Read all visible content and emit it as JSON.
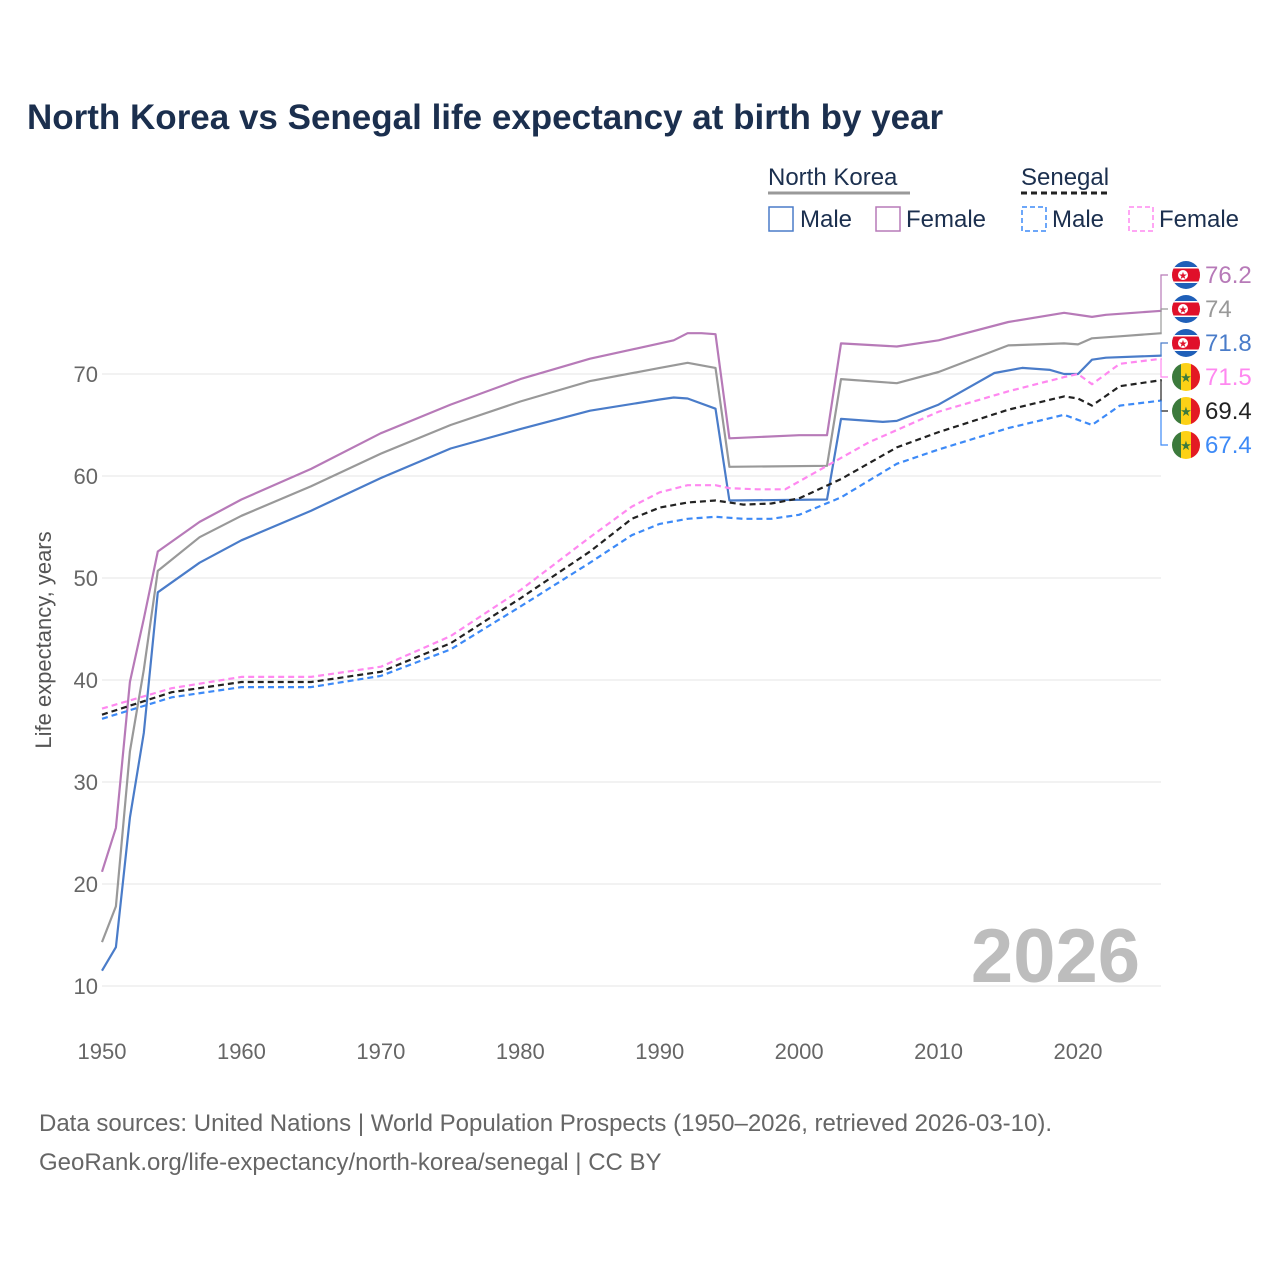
{
  "chart_data": {
    "type": "line",
    "title": "North Korea vs Senegal life expectancy at birth by year",
    "xlabel": "",
    "ylabel": "Life expectancy, years",
    "xlim": [
      1950,
      2026
    ],
    "ylim": [
      10,
      80
    ],
    "x_ticks": [
      1950,
      1960,
      1970,
      1980,
      1990,
      2000,
      2010,
      2020
    ],
    "y_ticks": [
      10,
      20,
      30,
      40,
      50,
      60,
      70
    ],
    "grid": true,
    "current_year": "2026",
    "legend": {
      "placement": "top-right",
      "groups": [
        {
          "country": "North Korea",
          "entries": [
            "Male",
            "Female"
          ]
        },
        {
          "country": "Senegal",
          "entries": [
            "Male",
            "Female"
          ]
        }
      ]
    },
    "series": [
      {
        "name": "North Korea Female",
        "color": "#b77ab8",
        "dashed": false,
        "flag": "north-korea",
        "end_label": "76.2",
        "x": [
          1950,
          1951,
          1952,
          1953,
          1954,
          1957,
          1960,
          1965,
          1970,
          1975,
          1980,
          1985,
          1990,
          1991,
          1992,
          1993,
          1994,
          1995,
          2000,
          2002,
          2003,
          2007,
          2010,
          2015,
          2019,
          2021,
          2022,
          2024,
          2026
        ],
        "y": [
          21.2,
          25.5,
          39.8,
          46,
          52.6,
          55.5,
          57.7,
          60.7,
          64.2,
          67,
          69.5,
          71.5,
          73,
          73.3,
          74,
          74,
          73.9,
          63.7,
          64,
          64,
          73,
          72.7,
          73.3,
          75.1,
          76,
          75.6,
          75.8,
          76,
          76.2
        ]
      },
      {
        "name": "North Korea Both",
        "color": "#999999",
        "dashed": false,
        "flag": "north-korea",
        "end_label": "74",
        "x": [
          1950,
          1951,
          1952,
          1953,
          1954,
          1957,
          1960,
          1965,
          1970,
          1975,
          1980,
          1985,
          1990,
          1992,
          1994,
          1995,
          2002,
          2003,
          2007,
          2010,
          2015,
          2019,
          2020,
          2021,
          2023,
          2026
        ],
        "y": [
          14.3,
          17.8,
          33,
          41,
          50.7,
          54,
          56.1,
          59,
          62.2,
          65,
          67.3,
          69.3,
          70.6,
          71.1,
          70.6,
          60.9,
          61,
          69.5,
          69.1,
          70.2,
          72.8,
          73,
          72.9,
          73.5,
          73.7,
          74
        ]
      },
      {
        "name": "North Korea Male",
        "color": "#4a7cc9",
        "dashed": false,
        "flag": "north-korea",
        "end_label": "71.8",
        "x": [
          1950,
          1951,
          1952,
          1953,
          1954,
          1957,
          1960,
          1965,
          1970,
          1975,
          1980,
          1985,
          1990,
          1991,
          1992,
          1994,
          1995,
          2002,
          2003,
          2006,
          2007,
          2010,
          2014,
          2016,
          2018,
          2019,
          2020,
          2021,
          2022,
          2026
        ],
        "y": [
          11.5,
          13.8,
          26.5,
          34.8,
          48.6,
          51.5,
          53.7,
          56.6,
          59.8,
          62.7,
          64.6,
          66.4,
          67.5,
          67.7,
          67.6,
          66.6,
          57.6,
          57.7,
          65.6,
          65.3,
          65.4,
          67,
          70.1,
          70.6,
          70.4,
          70,
          70,
          71.4,
          71.6,
          71.8
        ]
      },
      {
        "name": "Senegal Female",
        "color": "#ff88f0",
        "dashed": true,
        "flag": "senegal",
        "end_label": "71.5",
        "x": [
          1950,
          1955,
          1960,
          1965,
          1970,
          1975,
          1980,
          1985,
          1988,
          1990,
          1992,
          1994,
          1995,
          1997,
          1999,
          2002,
          2005,
          2010,
          2015,
          2019,
          2020,
          2021,
          2023,
          2026
        ],
        "y": [
          37.2,
          39.2,
          40.3,
          40.3,
          41.3,
          44.3,
          48.8,
          54,
          57,
          58.4,
          59.1,
          59.1,
          58.8,
          58.7,
          58.7,
          61,
          63.3,
          66.3,
          68.3,
          69.7,
          70,
          69,
          71,
          71.5
        ]
      },
      {
        "name": "Senegal Both",
        "color": "#222222",
        "dashed": true,
        "flag": "senegal",
        "end_label": "69.4",
        "x": [
          1950,
          1955,
          1960,
          1965,
          1970,
          1975,
          1980,
          1985,
          1988,
          1990,
          1992,
          1994,
          1996,
          1998,
          2000,
          2003,
          2007,
          2010,
          2015,
          2019,
          2020,
          2021,
          2023,
          2026
        ],
        "y": [
          36.6,
          38.8,
          39.8,
          39.8,
          40.8,
          43.6,
          48,
          52.6,
          55.8,
          56.9,
          57.4,
          57.6,
          57.2,
          57.3,
          57.8,
          59.7,
          62.8,
          64.3,
          66.5,
          67.8,
          67.6,
          66.9,
          68.8,
          69.4
        ]
      },
      {
        "name": "Senegal Male",
        "color": "#3d8af7",
        "dashed": true,
        "flag": "senegal",
        "end_label": "67.4",
        "x": [
          1950,
          1955,
          1960,
          1965,
          1970,
          1975,
          1980,
          1985,
          1988,
          1990,
          1992,
          1994,
          1996,
          1998,
          2000,
          2003,
          2007,
          2010,
          2015,
          2019,
          2021,
          2023,
          2026
        ],
        "y": [
          36.2,
          38.3,
          39.3,
          39.3,
          40.4,
          43,
          47.2,
          51.5,
          54.2,
          55.3,
          55.8,
          56,
          55.8,
          55.8,
          56.2,
          57.9,
          61.2,
          62.6,
          64.7,
          66,
          65,
          66.9,
          67.4
        ]
      }
    ],
    "source_lines": [
      "Data sources: United Nations | World Population Prospects (1950–2026, retrieved 2026-03-10).",
      "GeoRank.org/life-expectancy/north-korea/senegal | CC BY"
    ]
  }
}
